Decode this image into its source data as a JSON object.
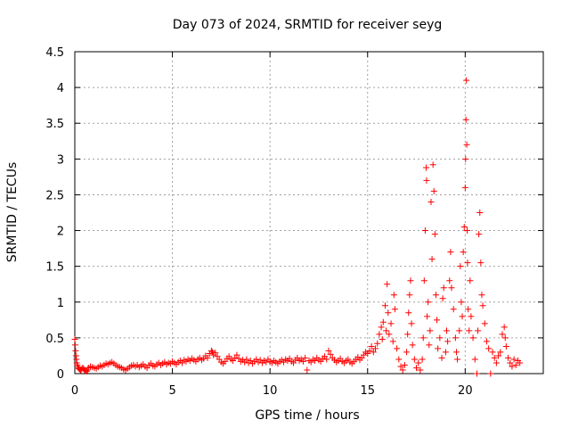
{
  "chart_data": {
    "type": "scatter",
    "title": "Day 073 of 2024, SRMTID for receiver seyg",
    "xlabel": "GPS time / hours",
    "ylabel": "SRMTID / TECUs",
    "xlim": [
      0,
      24
    ],
    "ylim": [
      0,
      4.5
    ],
    "xticks": [
      0,
      5,
      10,
      15,
      20
    ],
    "xtick_labels": [
      "0",
      "5",
      "10",
      "15",
      "20"
    ],
    "yticks": [
      0,
      0.5,
      1,
      1.5,
      2,
      2.5,
      3,
      3.5,
      4,
      4.5
    ],
    "ytick_labels": [
      "0",
      "0.5",
      "1",
      "1.5",
      "2",
      "2.5",
      "3",
      "3.5",
      "4",
      "4.5"
    ],
    "grid": true,
    "marker": "+",
    "color": "#ff0000",
    "series": [
      {
        "name": "SRMTID",
        "points": [
          [
            0.0,
            0.48
          ],
          [
            0.02,
            0.4
          ],
          [
            0.04,
            0.32
          ],
          [
            0.06,
            0.25
          ],
          [
            0.08,
            0.2
          ],
          [
            0.1,
            0.15
          ],
          [
            0.13,
            0.12
          ],
          [
            0.16,
            0.09
          ],
          [
            0.2,
            0.07
          ],
          [
            0.25,
            0.06
          ],
          [
            0.3,
            0.05
          ],
          [
            0.35,
            0.06
          ],
          [
            0.4,
            0.08
          ],
          [
            0.45,
            0.07
          ],
          [
            0.5,
            0.05
          ],
          [
            0.55,
            0.04
          ],
          [
            0.6,
            0.03
          ],
          [
            0.65,
            0.05
          ],
          [
            0.7,
            0.08
          ],
          [
            0.8,
            0.1
          ],
          [
            0.9,
            0.09
          ],
          [
            1.0,
            0.08
          ],
          [
            1.1,
            0.07
          ],
          [
            1.2,
            0.09
          ],
          [
            1.3,
            0.11
          ],
          [
            1.4,
            0.1
          ],
          [
            1.5,
            0.12
          ],
          [
            1.6,
            0.14
          ],
          [
            1.7,
            0.13
          ],
          [
            1.8,
            0.15
          ],
          [
            1.9,
            0.16
          ],
          [
            2.0,
            0.14
          ],
          [
            2.1,
            0.12
          ],
          [
            2.2,
            0.1
          ],
          [
            2.3,
            0.09
          ],
          [
            2.4,
            0.08
          ],
          [
            2.5,
            0.06
          ],
          [
            2.6,
            0.05
          ],
          [
            2.7,
            0.07
          ],
          [
            2.8,
            0.09
          ],
          [
            2.9,
            0.11
          ],
          [
            3.0,
            0.12
          ],
          [
            3.1,
            0.1
          ],
          [
            3.2,
            0.12
          ],
          [
            3.3,
            0.09
          ],
          [
            3.4,
            0.11
          ],
          [
            3.5,
            0.13
          ],
          [
            3.6,
            0.1
          ],
          [
            3.7,
            0.08
          ],
          [
            3.8,
            0.12
          ],
          [
            3.9,
            0.14
          ],
          [
            4.0,
            0.11
          ],
          [
            4.1,
            0.1
          ],
          [
            4.2,
            0.13
          ],
          [
            4.3,
            0.15
          ],
          [
            4.4,
            0.12
          ],
          [
            4.5,
            0.14
          ],
          [
            4.6,
            0.16
          ],
          [
            4.7,
            0.13
          ],
          [
            4.8,
            0.15
          ],
          [
            4.9,
            0.14
          ],
          [
            5.0,
            0.17
          ],
          [
            5.1,
            0.15
          ],
          [
            5.2,
            0.13
          ],
          [
            5.3,
            0.16
          ],
          [
            5.4,
            0.18
          ],
          [
            5.5,
            0.15
          ],
          [
            5.6,
            0.19
          ],
          [
            5.7,
            0.17
          ],
          [
            5.8,
            0.2
          ],
          [
            5.9,
            0.18
          ],
          [
            6.0,
            0.21
          ],
          [
            6.1,
            0.19
          ],
          [
            6.2,
            0.17
          ],
          [
            6.3,
            0.2
          ],
          [
            6.4,
            0.22
          ],
          [
            6.5,
            0.19
          ],
          [
            6.6,
            0.21
          ],
          [
            6.7,
            0.25
          ],
          [
            6.8,
            0.22
          ],
          [
            6.9,
            0.28
          ],
          [
            7.0,
            0.32
          ],
          [
            7.05,
            0.3
          ],
          [
            7.1,
            0.26
          ],
          [
            7.2,
            0.29
          ],
          [
            7.3,
            0.24
          ],
          [
            7.4,
            0.2
          ],
          [
            7.5,
            0.16
          ],
          [
            7.6,
            0.14
          ],
          [
            7.7,
            0.17
          ],
          [
            7.8,
            0.21
          ],
          [
            7.9,
            0.24
          ],
          [
            8.0,
            0.2
          ],
          [
            8.1,
            0.18
          ],
          [
            8.2,
            0.22
          ],
          [
            8.3,
            0.26
          ],
          [
            8.4,
            0.21
          ],
          [
            8.5,
            0.17
          ],
          [
            8.6,
            0.19
          ],
          [
            8.7,
            0.16
          ],
          [
            8.8,
            0.2
          ],
          [
            8.9,
            0.15
          ],
          [
            9.0,
            0.18
          ],
          [
            9.1,
            0.14
          ],
          [
            9.2,
            0.17
          ],
          [
            9.3,
            0.2
          ],
          [
            9.4,
            0.16
          ],
          [
            9.5,
            0.19
          ],
          [
            9.6,
            0.15
          ],
          [
            9.7,
            0.18
          ],
          [
            9.8,
            0.16
          ],
          [
            9.9,
            0.2
          ],
          [
            10.0,
            0.17
          ],
          [
            10.1,
            0.15
          ],
          [
            10.2,
            0.18
          ],
          [
            10.3,
            0.16
          ],
          [
            10.4,
            0.14
          ],
          [
            10.5,
            0.17
          ],
          [
            10.6,
            0.19
          ],
          [
            10.7,
            0.16
          ],
          [
            10.8,
            0.2
          ],
          [
            10.9,
            0.18
          ],
          [
            11.0,
            0.21
          ],
          [
            11.1,
            0.17
          ],
          [
            11.2,
            0.15
          ],
          [
            11.3,
            0.19
          ],
          [
            11.4,
            0.22
          ],
          [
            11.5,
            0.18
          ],
          [
            11.6,
            0.2
          ],
          [
            11.7,
            0.17
          ],
          [
            11.8,
            0.22
          ],
          [
            11.9,
            0.05
          ],
          [
            12.0,
            0.18
          ],
          [
            12.1,
            0.16
          ],
          [
            12.2,
            0.2
          ],
          [
            12.3,
            0.18
          ],
          [
            12.4,
            0.22
          ],
          [
            12.5,
            0.19
          ],
          [
            12.6,
            0.17
          ],
          [
            12.7,
            0.21
          ],
          [
            12.8,
            0.24
          ],
          [
            12.9,
            0.2
          ],
          [
            13.0,
            0.32
          ],
          [
            13.1,
            0.27
          ],
          [
            13.2,
            0.22
          ],
          [
            13.3,
            0.19
          ],
          [
            13.4,
            0.16
          ],
          [
            13.5,
            0.18
          ],
          [
            13.6,
            0.21
          ],
          [
            13.7,
            0.17
          ],
          [
            13.8,
            0.15
          ],
          [
            13.9,
            0.18
          ],
          [
            14.0,
            0.2
          ],
          [
            14.1,
            0.16
          ],
          [
            14.2,
            0.14
          ],
          [
            14.3,
            0.17
          ],
          [
            14.4,
            0.2
          ],
          [
            14.5,
            0.23
          ],
          [
            14.6,
            0.19
          ],
          [
            14.7,
            0.22
          ],
          [
            14.8,
            0.26
          ],
          [
            14.9,
            0.3
          ],
          [
            15.0,
            0.28
          ],
          [
            15.1,
            0.32
          ],
          [
            15.2,
            0.38
          ],
          [
            15.3,
            0.3
          ],
          [
            15.4,
            0.35
          ],
          [
            15.5,
            0.42
          ],
          [
            15.6,
            0.55
          ],
          [
            15.7,
            0.65
          ],
          [
            15.75,
            0.48
          ],
          [
            15.8,
            0.72
          ],
          [
            15.9,
            0.95
          ],
          [
            15.95,
            0.6
          ],
          [
            16.0,
            1.25
          ],
          [
            16.05,
            0.85
          ],
          [
            16.1,
            0.55
          ],
          [
            16.2,
            0.7
          ],
          [
            16.3,
            0.45
          ],
          [
            16.35,
            1.1
          ],
          [
            16.4,
            0.9
          ],
          [
            16.5,
            0.35
          ],
          [
            16.6,
            0.2
          ],
          [
            16.7,
            0.1
          ],
          [
            16.8,
            0.05
          ],
          [
            16.9,
            0.12
          ],
          [
            17.0,
            0.3
          ],
          [
            17.05,
            0.55
          ],
          [
            17.1,
            0.85
          ],
          [
            17.15,
            1.1
          ],
          [
            17.2,
            1.3
          ],
          [
            17.25,
            0.7
          ],
          [
            17.3,
            0.4
          ],
          [
            17.4,
            0.2
          ],
          [
            17.5,
            0.08
          ],
          [
            17.6,
            0.15
          ],
          [
            17.7,
            0.05
          ],
          [
            17.8,
            0.2
          ],
          [
            17.85,
            0.5
          ],
          [
            17.9,
            1.3
          ],
          [
            17.95,
            2.0
          ],
          [
            18.0,
            2.88
          ],
          [
            18.02,
            2.7
          ],
          [
            18.05,
            0.8
          ],
          [
            18.1,
            1.0
          ],
          [
            18.15,
            0.4
          ],
          [
            18.2,
            0.6
          ],
          [
            18.25,
            2.4
          ],
          [
            18.3,
            1.6
          ],
          [
            18.35,
            2.92
          ],
          [
            18.4,
            2.55
          ],
          [
            18.45,
            1.95
          ],
          [
            18.5,
            1.1
          ],
          [
            18.55,
            0.75
          ],
          [
            18.6,
            0.35
          ],
          [
            18.7,
            0.5
          ],
          [
            18.8,
            0.22
          ],
          [
            18.85,
            1.05
          ],
          [
            18.9,
            1.2
          ],
          [
            19.0,
            0.3
          ],
          [
            19.05,
            0.6
          ],
          [
            19.1,
            0.45
          ],
          [
            19.2,
            1.3
          ],
          [
            19.25,
            1.7
          ],
          [
            19.3,
            1.2
          ],
          [
            19.4,
            0.9
          ],
          [
            19.5,
            0.5
          ],
          [
            19.55,
            0.3
          ],
          [
            19.6,
            0.2
          ],
          [
            19.7,
            0.6
          ],
          [
            19.75,
            1.5
          ],
          [
            19.8,
            1.0
          ],
          [
            19.85,
            0.8
          ],
          [
            19.9,
            1.7
          ],
          [
            19.95,
            2.05
          ],
          [
            20.0,
            2.6
          ],
          [
            20.02,
            3.0
          ],
          [
            20.04,
            3.55
          ],
          [
            20.06,
            4.1
          ],
          [
            20.08,
            3.2
          ],
          [
            20.1,
            2.0
          ],
          [
            20.12,
            1.55
          ],
          [
            20.15,
            0.9
          ],
          [
            20.2,
            0.6
          ],
          [
            20.25,
            1.3
          ],
          [
            20.3,
            0.8
          ],
          [
            20.4,
            0.5
          ],
          [
            20.5,
            0.2
          ],
          [
            20.6,
            0.0
          ],
          [
            20.65,
            0.6
          ],
          [
            20.7,
            1.95
          ],
          [
            20.75,
            2.25
          ],
          [
            20.8,
            1.55
          ],
          [
            20.85,
            1.1
          ],
          [
            20.9,
            0.95
          ],
          [
            21.0,
            0.7
          ],
          [
            21.1,
            0.45
          ],
          [
            21.2,
            0.35
          ],
          [
            21.3,
            0.0
          ],
          [
            21.4,
            0.3
          ],
          [
            21.5,
            0.22
          ],
          [
            21.6,
            0.15
          ],
          [
            21.7,
            0.25
          ],
          [
            21.8,
            0.3
          ],
          [
            21.9,
            0.55
          ],
          [
            22.0,
            0.65
          ],
          [
            22.05,
            0.5
          ],
          [
            22.1,
            0.38
          ],
          [
            22.2,
            0.22
          ],
          [
            22.3,
            0.15
          ],
          [
            22.4,
            0.1
          ],
          [
            22.5,
            0.2
          ],
          [
            22.6,
            0.12
          ],
          [
            22.7,
            0.18
          ],
          [
            22.8,
            0.15
          ]
        ]
      }
    ]
  }
}
